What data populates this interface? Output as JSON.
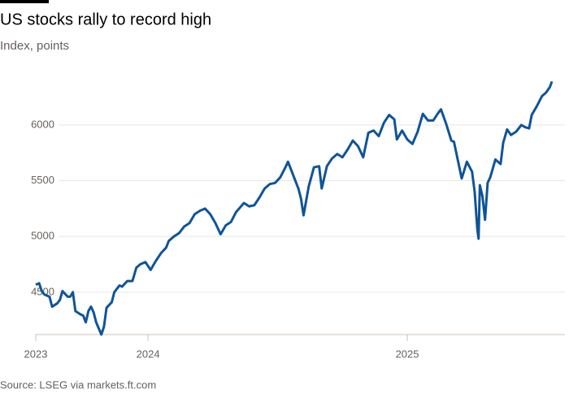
{
  "chart_data": {
    "type": "line",
    "title": "US stocks rally to record high",
    "subtitle": "Index, points",
    "source": "Source: LSEG via markets.ft.com",
    "color": "#0f5499",
    "grid": true,
    "xlim": [
      2023.567,
      2025.558
    ],
    "xticks": [
      {
        "value": 2023.567,
        "label": "2023"
      },
      2024,
      2025
    ],
    "ylim": [
      4120,
      6400
    ],
    "yticks": [
      4500,
      5000,
      5500,
      6000
    ],
    "x": [
      2023.567,
      2023.58,
      2023.59,
      2023.6,
      2023.62,
      2023.63,
      2023.65,
      2023.66,
      2023.67,
      2023.69,
      2023.7,
      2023.71,
      2023.72,
      2023.74,
      2023.75,
      2023.76,
      2023.77,
      2023.78,
      2023.79,
      2023.8,
      2023.82,
      2023.83,
      2023.84,
      2023.86,
      2023.87,
      2023.89,
      2023.9,
      2023.92,
      2023.94,
      2023.955,
      2023.97,
      2023.99,
      2024.01,
      2024.03,
      2024.05,
      2024.07,
      2024.08,
      2024.1,
      2024.12,
      2024.14,
      2024.16,
      2024.18,
      2024.2,
      2024.22,
      2024.24,
      2024.26,
      2024.28,
      2024.3,
      2024.32,
      2024.34,
      2024.37,
      2024.39,
      2024.41,
      2024.43,
      2024.45,
      2024.47,
      2024.49,
      2024.51,
      2024.53,
      2024.54,
      2024.56,
      2024.58,
      2024.59,
      2024.6,
      2024.62,
      2024.64,
      2024.66,
      2024.67,
      2024.69,
      2024.71,
      2024.73,
      2024.75,
      2024.77,
      2024.79,
      2024.81,
      2024.83,
      2024.85,
      2024.87,
      2024.89,
      2024.91,
      2024.93,
      2024.95,
      2024.96,
      2024.98,
      2025.0,
      2025.02,
      2025.04,
      2025.06,
      2025.08,
      2025.1,
      2025.12,
      2025.13,
      2025.15,
      2025.17,
      2025.18,
      2025.2,
      2025.21,
      2025.23,
      2025.25,
      2025.26,
      2025.27,
      2025.275,
      2025.28,
      2025.29,
      2025.3,
      2025.31,
      2025.32,
      2025.34,
      2025.36,
      2025.37,
      2025.385,
      2025.4,
      2025.42,
      2025.44,
      2025.455,
      2025.47,
      2025.48,
      2025.5,
      2025.52,
      2025.535,
      2025.55,
      2025.558
    ],
    "values": [
      4567,
      4580,
      4510,
      4480,
      4460,
      4370,
      4400,
      4430,
      4510,
      4460,
      4460,
      4500,
      4330,
      4300,
      4290,
      4230,
      4330,
      4370,
      4320,
      4230,
      4120,
      4190,
      4360,
      4410,
      4500,
      4560,
      4550,
      4600,
      4600,
      4720,
      4750,
      4770,
      4700,
      4780,
      4850,
      4900,
      4960,
      5000,
      5030,
      5090,
      5120,
      5200,
      5230,
      5250,
      5200,
      5120,
      5020,
      5100,
      5130,
      5220,
      5300,
      5270,
      5280,
      5350,
      5430,
      5470,
      5480,
      5530,
      5620,
      5670,
      5550,
      5430,
      5340,
      5190,
      5450,
      5620,
      5630,
      5430,
      5630,
      5700,
      5740,
      5710,
      5780,
      5860,
      5810,
      5710,
      5930,
      5950,
      5900,
      6020,
      6090,
      6050,
      5870,
      5950,
      5870,
      5830,
      5940,
      6100,
      6040,
      6040,
      6110,
      6140,
      6010,
      5860,
      5850,
      5630,
      5520,
      5670,
      5580,
      5400,
      5070,
      4980,
      5460,
      5360,
      5150,
      5480,
      5530,
      5690,
      5650,
      5840,
      5960,
      5910,
      5940,
      6000,
      5980,
      5970,
      6090,
      6170,
      6260,
      6290,
      6340,
      6390
    ]
  }
}
